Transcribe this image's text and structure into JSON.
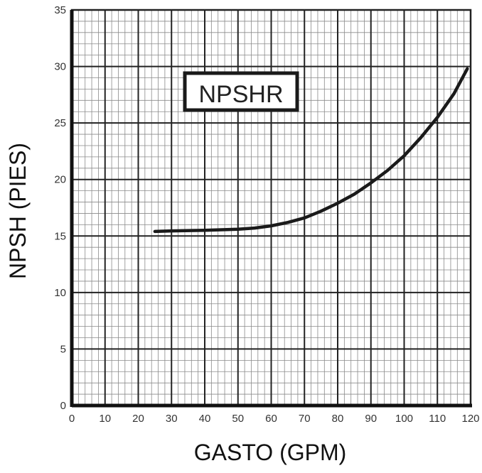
{
  "chart_data": {
    "type": "line",
    "title": "",
    "xlabel": "GASTO (GPM)",
    "ylabel": "NPSH (PIES)",
    "xlim": [
      0,
      120
    ],
    "ylim": [
      0,
      35
    ],
    "x_ticks": [
      0,
      10,
      20,
      30,
      40,
      50,
      60,
      70,
      80,
      90,
      100,
      110,
      120
    ],
    "y_ticks": [
      0,
      5,
      10,
      15,
      20,
      25,
      30,
      35
    ],
    "x_minor_step": 2,
    "y_minor_step": 1,
    "grid": true,
    "annotation": "NPSHR",
    "series": [
      {
        "color": "#1a1a1a",
        "x": [
          25,
          30,
          40,
          50,
          55,
          60,
          65,
          70,
          75,
          80,
          85,
          90,
          95,
          100,
          105,
          110,
          115,
          119
        ],
        "y": [
          15.4,
          15.45,
          15.5,
          15.6,
          15.7,
          15.9,
          16.2,
          16.6,
          17.2,
          17.9,
          18.7,
          19.7,
          20.8,
          22.1,
          23.7,
          25.5,
          27.6,
          29.8
        ]
      }
    ]
  }
}
